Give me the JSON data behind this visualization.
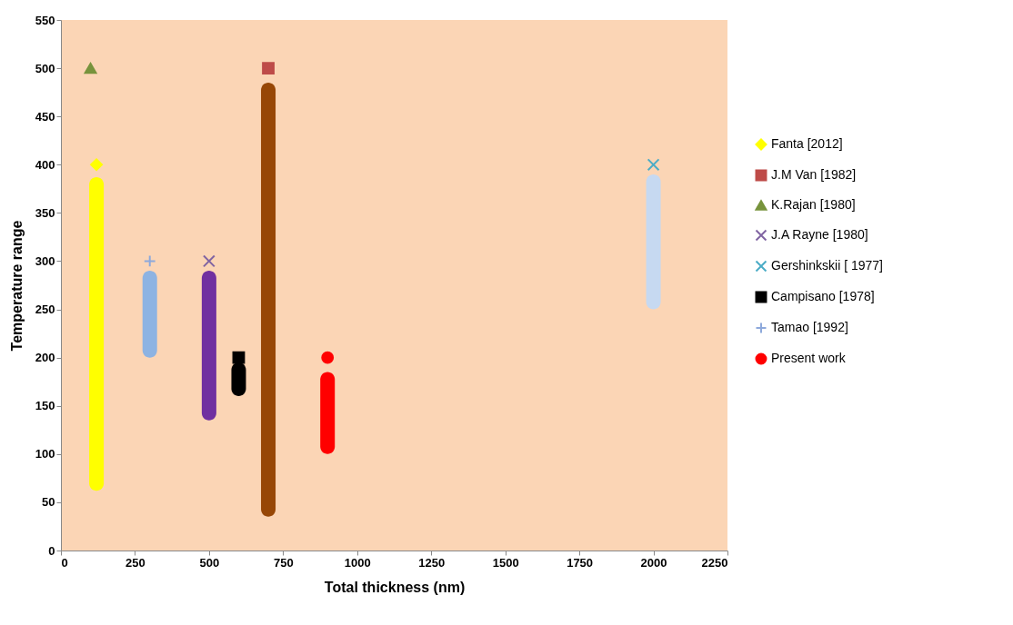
{
  "chart_data": {
    "type": "scatter",
    "xlabel": "Total thickness (nm)",
    "ylabel": "Temperature range",
    "xlim": [
      0,
      2250
    ],
    "xticks": [
      0,
      250,
      500,
      750,
      1000,
      1250,
      1500,
      1750,
      2000,
      2250
    ],
    "ylim": [
      0,
      550
    ],
    "yticks": [
      0,
      50,
      100,
      150,
      200,
      250,
      300,
      350,
      400,
      450,
      500,
      550
    ],
    "grid": false,
    "legend": "right",
    "series": [
      {
        "type": "bar",
        "x": [
          120,
          300,
          500,
          600,
          700,
          900,
          2000
        ],
        "base": [
          62,
          200,
          135,
          160,
          35,
          100,
          250
        ],
        "values": [
          325,
          90,
          155,
          35,
          450,
          85,
          140
        ],
        "colors": [
          "#ffff00",
          "#8db3e2",
          "#7030a0",
          "#000000",
          "#974706",
          "#ff0000",
          "#c6d9f1"
        ]
      },
      {
        "name": "Fanta [2012]",
        "color": "#ffff00",
        "marker": "diamond",
        "x": [
          120
        ],
        "values": [
          400
        ]
      },
      {
        "name": "J.M Van [1982]",
        "color": "#be4b48",
        "marker": "square",
        "x": [
          700
        ],
        "values": [
          500
        ]
      },
      {
        "name": "K.Rajan [1980]",
        "color": "#77933c",
        "marker": "triangle",
        "x": [
          100
        ],
        "values": [
          500
        ]
      },
      {
        "name": "J.A Rayne [1980]",
        "color": "#8064a2",
        "marker": "cross",
        "x": [
          500
        ],
        "values": [
          300
        ]
      },
      {
        "name": "Gershinkskii [ 1977]",
        "color": "#4bacc6",
        "marker": "cross",
        "x": [
          2000
        ],
        "values": [
          400
        ]
      },
      {
        "name": "Campisano [1978]",
        "color": "#000000",
        "marker": "square",
        "x": [
          600
        ],
        "values": [
          200
        ]
      },
      {
        "name": "Tamao [1992]",
        "color": "#8ea9db",
        "marker": "plus",
        "x": [
          300
        ],
        "values": [
          300
        ]
      },
      {
        "name": "Present work",
        "color": "#ff0000",
        "marker": "circle",
        "x": [
          900
        ],
        "values": [
          200
        ]
      }
    ]
  }
}
